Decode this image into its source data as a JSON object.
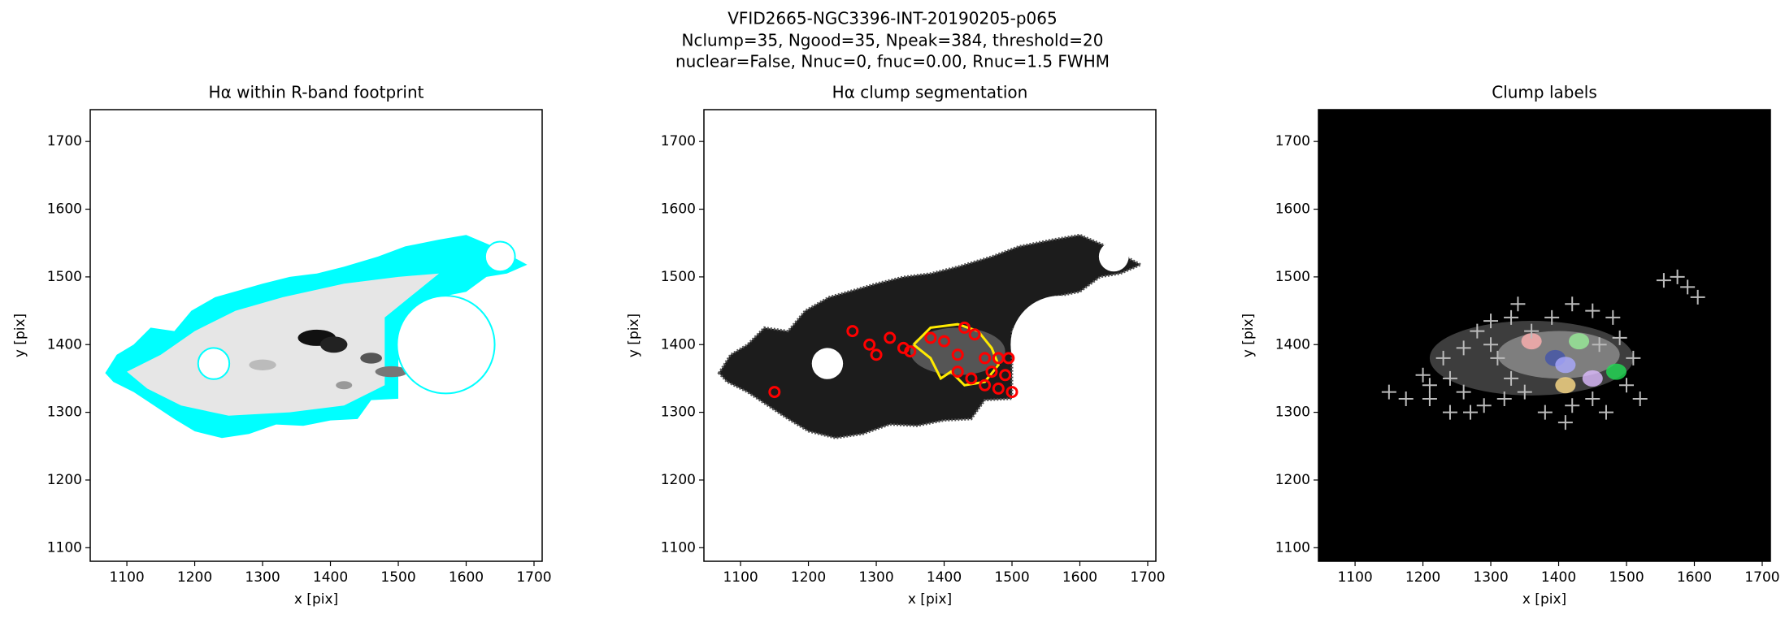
{
  "suptitle": [
    "VFID2665-NGC3396-INT-20190205-p065",
    "Nclump=35, Ngood=35, Npeak=384, threshold=20",
    "nuclear=False, Nnuc=0, fnuc=0.00, Rnuc=1.5 FWHM"
  ],
  "chart_data": [
    {
      "type": "image",
      "title": "Hα within R-band footprint",
      "xlabel": "x [pix]",
      "ylabel": "y [pix]",
      "background": "#ffffff",
      "xlim": [
        1046,
        1712
      ],
      "ylim": [
        1080,
        1747
      ],
      "xticks": [
        1100,
        1200,
        1300,
        1400,
        1500,
        1600,
        1700
      ],
      "yticks": [
        1100,
        1200,
        1300,
        1400,
        1500,
        1600,
        1700
      ]
    },
    {
      "type": "image",
      "title": "Hα clump segmentation",
      "xlabel": "x [pix]",
      "ylabel": "y [pix]",
      "background": "#ffffff",
      "xlim": [
        1046,
        1712
      ],
      "ylim": [
        1080,
        1747
      ],
      "xticks": [
        1100,
        1200,
        1300,
        1400,
        1500,
        1600,
        1700
      ],
      "yticks": [
        1100,
        1200,
        1300,
        1400,
        1500,
        1600,
        1700
      ]
    },
    {
      "type": "image",
      "title": "Clump labels",
      "xlabel": "x [pix]",
      "ylabel": "y [pix]",
      "background": "#000000",
      "xlim": [
        1046,
        1712
      ],
      "ylim": [
        1080,
        1747
      ],
      "xticks": [
        1100,
        1200,
        1300,
        1400,
        1500,
        1600,
        1700
      ],
      "yticks": [
        1100,
        1200,
        1300,
        1400,
        1500,
        1600,
        1700
      ]
    }
  ]
}
